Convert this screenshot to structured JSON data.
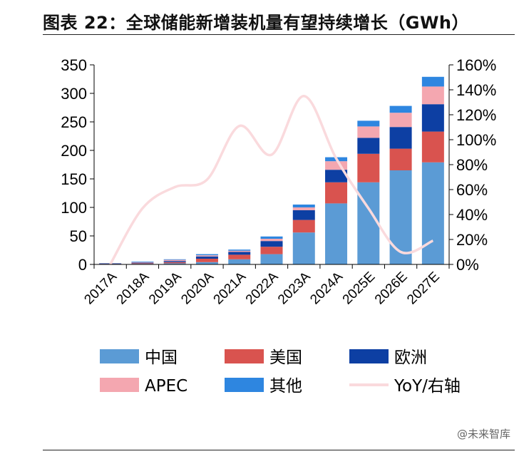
{
  "title": "图表 22：全球储能新增装机量有望持续增长（GWh）",
  "watermark": "@未来智库",
  "colors": {
    "china": "#5b9bd5",
    "usa": "#d9534f",
    "europe": "#0d3fa3",
    "apec": "#f4a7b0",
    "other": "#2e86e0",
    "yoy": "#fadadd",
    "axis": "#000000"
  },
  "chart_data": {
    "type": "bar",
    "stacked": true,
    "title": "全球储能新增装机量有望持续增长（GWh）",
    "categories": [
      "2017A",
      "2018A",
      "2019A",
      "2020A",
      "2021A",
      "2022A",
      "2023A",
      "2024A",
      "2025E",
      "2026E",
      "2027E"
    ],
    "series": [
      {
        "name": "中国",
        "key": "china",
        "values": [
          0.5,
          1,
          2,
          4,
          9,
          18,
          56,
          107,
          144,
          165,
          179
        ]
      },
      {
        "name": "美国",
        "key": "usa",
        "values": [
          0.5,
          1,
          2,
          6,
          8,
          13,
          22,
          37,
          50,
          38,
          54
        ]
      },
      {
        "name": "欧洲",
        "key": "europe",
        "values": [
          0.5,
          1,
          2,
          4,
          5,
          10,
          17,
          22,
          28,
          38,
          48
        ]
      },
      {
        "name": "APEC",
        "key": "apec",
        "values": [
          0.5,
          1,
          2,
          2,
          2,
          4,
          5,
          15,
          20,
          25,
          31
        ]
      },
      {
        "name": "其他",
        "key": "other",
        "values": [
          0.5,
          1,
          1,
          2,
          2,
          4,
          5,
          7,
          10,
          12,
          17
        ]
      }
    ],
    "line": {
      "name": "YoY/右轴",
      "axis": "right",
      "values": [
        null,
        45,
        62,
        68,
        111,
        88,
        135,
        85,
        45,
        10,
        19
      ]
    },
    "ylim_left": [
      0,
      350
    ],
    "yticks_left": [
      0,
      50,
      100,
      150,
      200,
      250,
      300,
      350
    ],
    "ylim_right": [
      0,
      160
    ],
    "yticks_right": [
      0,
      20,
      40,
      60,
      80,
      100,
      120,
      140,
      160
    ],
    "yticks_right_labels": [
      "0%",
      "20%",
      "40%",
      "60%",
      "80%",
      "100%",
      "120%",
      "140%",
      "160%"
    ],
    "legend": [
      {
        "label": "中国",
        "key": "china",
        "kind": "box"
      },
      {
        "label": "美国",
        "key": "usa",
        "kind": "box"
      },
      {
        "label": "欧洲",
        "key": "europe",
        "kind": "box"
      },
      {
        "label": "APEC",
        "key": "apec",
        "kind": "box"
      },
      {
        "label": "其他",
        "key": "other",
        "kind": "box"
      },
      {
        "label": "YoY/右轴",
        "key": "yoy",
        "kind": "line"
      }
    ],
    "legend_position": "bottom"
  }
}
